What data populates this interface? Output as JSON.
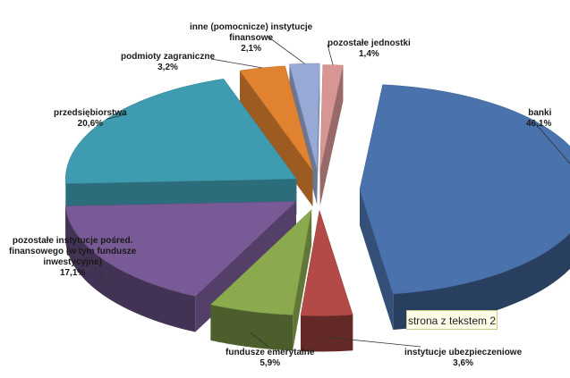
{
  "chart_data": {
    "type": "pie",
    "title": "",
    "style": "3d-exploded",
    "slices": [
      {
        "name": "banki",
        "value": 46.1,
        "label": "46,1%",
        "color": "#4A72AD"
      },
      {
        "name": "instytucje ubezpieczeniowe",
        "value": 3.6,
        "label": "3,6%",
        "color": "#B34A47"
      },
      {
        "name": "fundusze emerytalne",
        "value": 5.9,
        "label": "5,9%",
        "color": "#8BAA4E"
      },
      {
        "name": "pozostałe instytucje pośred. finansowego (w tym fundusze inwestycyjne)",
        "value": 17.1,
        "label": "17,1%",
        "color": "#785A96"
      },
      {
        "name": "przedsiębiorstwa",
        "value": 20.6,
        "label": "20,6%",
        "color": "#3E9BB0"
      },
      {
        "name": "podmioty zagraniczne",
        "value": 3.2,
        "label": "3,2%",
        "color": "#E0822F"
      },
      {
        "name": "inne (pomocnicze) instytucje finansowe",
        "value": 2.1,
        "label": "2,1%",
        "color": "#97A9D4"
      },
      {
        "name": "pozostałe jednostki",
        "value": 1.4,
        "label": "1,4%",
        "color": "#D79694"
      }
    ]
  },
  "labels": {
    "banki": {
      "lines": [
        "banki"
      ],
      "pct": "46,1%"
    },
    "ubezp": {
      "lines": [
        "instytucje ubezpieczeniowe"
      ],
      "pct": "3,6%"
    },
    "emeryt": {
      "lines": [
        "fundusze emerytalne"
      ],
      "pct": "5,9%"
    },
    "posred": {
      "lines": [
        "pozostałe instytucje pośred.",
        "finansowego (w tym fundusze",
        "inwestycyjne)"
      ],
      "pct": "17,1%"
    },
    "przeds": {
      "lines": [
        "przedsiębiorstwa"
      ],
      "pct": "20,6%"
    },
    "zagr": {
      "lines": [
        "podmioty zagraniczne"
      ],
      "pct": "3,2%"
    },
    "inne": {
      "lines": [
        "inne (pomocnicze) instytucje",
        "finansowe"
      ],
      "pct": "2,1%"
    },
    "pozost": {
      "lines": [
        "pozostałe jednostki"
      ],
      "pct": "1,4%"
    }
  },
  "textbox": "strona z tekstem 2"
}
